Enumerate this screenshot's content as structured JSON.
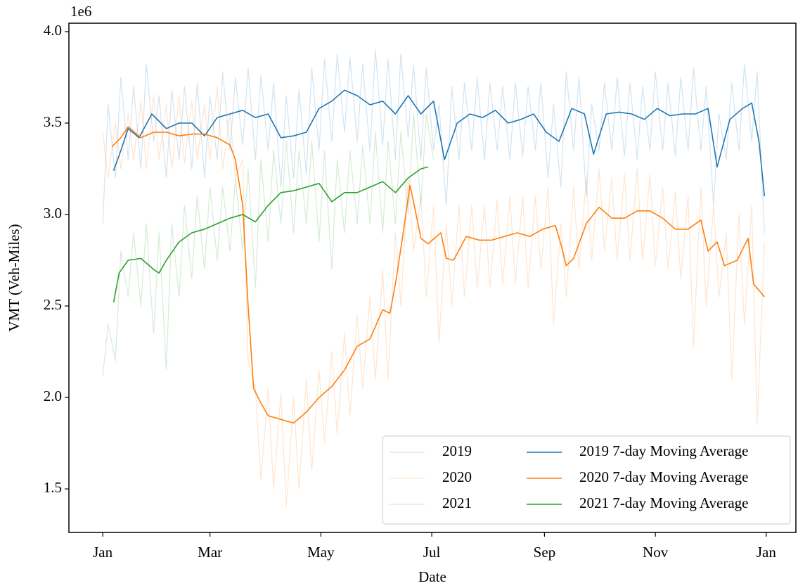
{
  "chart_data": {
    "type": "line",
    "x_label": "Date",
    "y_label": "VMT (Veh-Miles)",
    "y_offset_label": "1e6",
    "xlim": [
      -18.6,
      381.3
    ],
    "ylim": [
      1.262,
      4.046
    ],
    "xticks": [
      {
        "value": 0,
        "label": "Jan"
      },
      {
        "value": 59,
        "label": "Mar"
      },
      {
        "value": 120,
        "label": "May"
      },
      {
        "value": 181,
        "label": "Jul"
      },
      {
        "value": 243,
        "label": "Sep"
      },
      {
        "value": 304,
        "label": "Nov"
      },
      {
        "value": 365,
        "label": "Jan"
      }
    ],
    "yticks": [
      1.5,
      {
        "value": 2.0,
        "label": "2.0"
      },
      2.5,
      {
        "value": 3.0,
        "label": "3.0"
      },
      3.5,
      {
        "value": 4.0,
        "label": "4.0"
      }
    ],
    "grid": false,
    "legend": "lower right",
    "legend_columns": 2,
    "series": [
      {
        "name": "2019",
        "color": "#1f77b4",
        "alpha": 0.2,
        "width": 1.2,
        "x": [
          0,
          3,
          7,
          10,
          14,
          17,
          21,
          24,
          28,
          31,
          35,
          38,
          42,
          45,
          49,
          52,
          56,
          59,
          63,
          66,
          70,
          73,
          77,
          80,
          84,
          87,
          91,
          94,
          98,
          101,
          105,
          108,
          112,
          115,
          119,
          122,
          126,
          129,
          133,
          136,
          140,
          143,
          147,
          150,
          154,
          157,
          161,
          164,
          168,
          171,
          175,
          178,
          182,
          185,
          189,
          192,
          196,
          199,
          203,
          206,
          210,
          213,
          217,
          220,
          224,
          227,
          231,
          234,
          238,
          241,
          245,
          248,
          252,
          255,
          259,
          262,
          266,
          269,
          273,
          276,
          280,
          283,
          287,
          290,
          294,
          297,
          301,
          304,
          308,
          311,
          315,
          318,
          322,
          325,
          329,
          332,
          336,
          339,
          343,
          346,
          350,
          353,
          357,
          360,
          364
        ],
        "values": [
          2.95,
          3.6,
          3.2,
          3.75,
          3.3,
          3.7,
          3.25,
          3.82,
          3.4,
          3.65,
          3.2,
          3.68,
          3.3,
          3.7,
          3.25,
          3.72,
          3.2,
          3.65,
          3.3,
          3.78,
          3.35,
          3.75,
          3.38,
          3.8,
          3.3,
          3.76,
          3.35,
          3.72,
          3.15,
          3.65,
          3.2,
          3.68,
          3.22,
          3.8,
          3.35,
          3.85,
          3.4,
          3.88,
          3.45,
          3.86,
          3.4,
          3.82,
          3.35,
          3.9,
          3.38,
          3.85,
          3.3,
          3.88,
          3.42,
          3.82,
          3.3,
          3.8,
          3.35,
          3.6,
          3.05,
          3.7,
          3.3,
          3.72,
          3.35,
          3.75,
          3.3,
          3.72,
          3.35,
          3.7,
          3.3,
          3.72,
          3.32,
          3.7,
          3.35,
          3.72,
          3.2,
          3.6,
          3.15,
          3.78,
          3.35,
          3.75,
          3.1,
          3.6,
          3.35,
          3.72,
          3.35,
          3.75,
          3.32,
          3.72,
          3.3,
          3.7,
          3.35,
          3.78,
          3.35,
          3.72,
          3.32,
          3.75,
          3.35,
          3.8,
          3.35,
          3.7,
          3.05,
          3.55,
          3.3,
          3.72,
          3.35,
          3.82,
          3.4,
          3.78,
          2.9
        ]
      },
      {
        "name": "2020",
        "color": "#ff7f0e",
        "alpha": 0.2,
        "width": 1.2,
        "x": [
          0,
          3,
          7,
          10,
          14,
          17,
          21,
          24,
          28,
          31,
          35,
          38,
          42,
          45,
          49,
          52,
          56,
          59,
          63,
          66,
          70,
          73,
          77,
          80,
          84,
          87,
          91,
          94,
          98,
          101,
          105,
          108,
          112,
          115,
          119,
          122,
          126,
          129,
          133,
          136,
          140,
          143,
          147,
          150,
          154,
          157,
          161,
          164,
          168,
          171,
          175,
          178,
          182,
          185,
          189,
          192,
          196,
          199,
          203,
          206,
          210,
          213,
          217,
          220,
          224,
          227,
          231,
          234,
          238,
          241,
          245,
          248,
          252,
          255,
          259,
          262,
          266,
          269,
          273,
          276,
          280,
          283,
          287,
          290,
          294,
          297,
          301,
          304,
          308,
          311,
          315,
          318,
          322,
          325,
          329,
          332,
          336,
          339,
          343,
          346,
          350,
          353,
          357,
          360,
          364
        ],
        "values": [
          3.45,
          3.2,
          3.5,
          3.25,
          3.55,
          3.3,
          3.62,
          3.25,
          3.65,
          3.3,
          3.6,
          3.25,
          3.65,
          3.28,
          3.62,
          3.3,
          3.6,
          3.3,
          3.7,
          3.25,
          3.55,
          3.2,
          3.3,
          2.2,
          2.05,
          1.55,
          2.05,
          1.5,
          2.02,
          1.4,
          2.0,
          1.5,
          2.1,
          1.6,
          2.15,
          1.75,
          2.25,
          1.8,
          2.35,
          1.9,
          2.45,
          2.05,
          2.55,
          2.1,
          2.7,
          2.1,
          2.9,
          2.5,
          3.2,
          2.8,
          3.1,
          2.55,
          3.05,
          2.3,
          2.95,
          2.5,
          3.05,
          2.55,
          3.05,
          2.6,
          3.05,
          2.6,
          3.08,
          2.62,
          3.1,
          2.62,
          3.1,
          2.6,
          3.1,
          2.7,
          3.15,
          2.4,
          2.95,
          2.55,
          3.15,
          2.7,
          3.2,
          2.75,
          3.25,
          2.8,
          3.2,
          2.75,
          3.22,
          2.75,
          3.25,
          2.75,
          3.22,
          2.72,
          3.15,
          2.7,
          3.12,
          2.65,
          3.1,
          2.28,
          3.15,
          2.5,
          3.05,
          2.55,
          2.9,
          2.1,
          3.0,
          2.4,
          3.05,
          1.85,
          2.85
        ]
      },
      {
        "name": "2021",
        "color": "#2ca02c",
        "alpha": 0.2,
        "width": 1.2,
        "x": [
          0,
          3,
          7,
          10,
          14,
          17,
          21,
          24,
          28,
          31,
          35,
          38,
          42,
          45,
          49,
          52,
          56,
          59,
          63,
          66,
          70,
          73,
          77,
          80,
          84,
          87,
          91,
          94,
          98,
          101,
          105,
          108,
          112,
          115,
          119,
          122,
          126,
          129,
          133,
          136,
          140,
          143,
          147,
          150,
          154,
          157,
          161,
          164,
          168,
          171,
          175,
          178,
          182
        ],
        "values": [
          2.12,
          2.4,
          2.2,
          2.8,
          2.55,
          2.9,
          2.5,
          2.95,
          2.35,
          2.9,
          2.15,
          2.95,
          2.55,
          3.05,
          2.65,
          3.1,
          2.7,
          3.15,
          2.75,
          3.15,
          2.8,
          3.2,
          2.8,
          3.25,
          2.6,
          3.3,
          2.85,
          3.35,
          2.95,
          3.4,
          2.9,
          3.35,
          2.95,
          3.4,
          2.85,
          3.35,
          2.7,
          3.3,
          2.9,
          3.35,
          2.95,
          3.38,
          2.95,
          3.45,
          2.9,
          3.4,
          2.95,
          3.45,
          3.0,
          3.55,
          3.05,
          3.55,
          3.3
        ]
      },
      {
        "name": "2019 7-day Moving Average",
        "color": "#1f77b4",
        "alpha": 1,
        "width": 1.6,
        "x": [
          6,
          10,
          14,
          20,
          27,
          35,
          42,
          49,
          56,
          63,
          70,
          77,
          84,
          91,
          98,
          105,
          112,
          119,
          126,
          133,
          140,
          147,
          154,
          161,
          168,
          175,
          182,
          188,
          195,
          202,
          209,
          216,
          223,
          230,
          237,
          244,
          251,
          258,
          265,
          270,
          277,
          284,
          291,
          298,
          305,
          312,
          319,
          326,
          333,
          338,
          345,
          352,
          357,
          361,
          364
        ],
        "values": [
          3.24,
          3.35,
          3.47,
          3.42,
          3.55,
          3.47,
          3.5,
          3.5,
          3.43,
          3.53,
          3.55,
          3.57,
          3.53,
          3.55,
          3.42,
          3.43,
          3.45,
          3.58,
          3.62,
          3.68,
          3.65,
          3.6,
          3.62,
          3.55,
          3.65,
          3.55,
          3.62,
          3.3,
          3.5,
          3.55,
          3.53,
          3.57,
          3.5,
          3.52,
          3.55,
          3.45,
          3.4,
          3.58,
          3.55,
          3.33,
          3.55,
          3.56,
          3.55,
          3.52,
          3.58,
          3.54,
          3.55,
          3.55,
          3.58,
          3.26,
          3.52,
          3.58,
          3.61,
          3.4,
          3.1
        ]
      },
      {
        "name": "2020 7-day Moving Average",
        "color": "#ff7f0e",
        "alpha": 1,
        "width": 1.6,
        "x": [
          5,
          10,
          14,
          21,
          28,
          35,
          42,
          49,
          56,
          63,
          70,
          73,
          77,
          80,
          83,
          87,
          91,
          98,
          105,
          112,
          119,
          126,
          133,
          140,
          147,
          154,
          158,
          161,
          165,
          169,
          172,
          175,
          179,
          186,
          189,
          193,
          200,
          207,
          214,
          221,
          228,
          235,
          242,
          249,
          252,
          255,
          259,
          266,
          273,
          280,
          287,
          294,
          301,
          308,
          315,
          322,
          329,
          333,
          338,
          342,
          349,
          355,
          358,
          364
        ],
        "values": [
          3.37,
          3.42,
          3.48,
          3.42,
          3.45,
          3.45,
          3.43,
          3.44,
          3.44,
          3.42,
          3.38,
          3.3,
          3.05,
          2.5,
          2.05,
          1.97,
          1.9,
          1.88,
          1.86,
          1.92,
          2.0,
          2.06,
          2.15,
          2.28,
          2.32,
          2.48,
          2.46,
          2.62,
          2.88,
          3.16,
          3.02,
          2.87,
          2.84,
          2.9,
          2.76,
          2.75,
          2.88,
          2.86,
          2.86,
          2.88,
          2.9,
          2.88,
          2.92,
          2.94,
          2.84,
          2.72,
          2.76,
          2.95,
          3.04,
          2.98,
          2.98,
          3.02,
          3.02,
          2.98,
          2.92,
          2.92,
          2.97,
          2.8,
          2.85,
          2.72,
          2.75,
          2.87,
          2.62,
          2.55
        ]
      },
      {
        "name": "2021 7-day Moving Average",
        "color": "#2ca02c",
        "alpha": 1,
        "width": 1.6,
        "x": [
          6,
          9,
          14,
          21,
          28,
          31,
          35,
          42,
          49,
          56,
          63,
          70,
          77,
          84,
          91,
          98,
          105,
          112,
          119,
          126,
          133,
          140,
          147,
          154,
          161,
          168,
          175,
          179
        ],
        "values": [
          2.52,
          2.68,
          2.75,
          2.76,
          2.7,
          2.68,
          2.75,
          2.85,
          2.9,
          2.92,
          2.95,
          2.98,
          3.0,
          2.96,
          3.05,
          3.12,
          3.13,
          3.15,
          3.17,
          3.07,
          3.12,
          3.12,
          3.15,
          3.18,
          3.12,
          3.2,
          3.25,
          3.26
        ]
      }
    ]
  }
}
